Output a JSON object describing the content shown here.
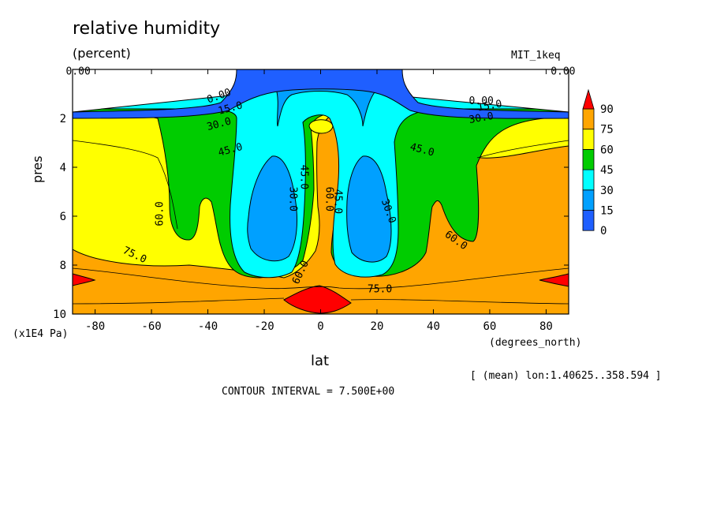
{
  "chart_data": {
    "type": "heatmap",
    "title": "relative humidity",
    "subtitle": "(percent)",
    "run_label": "MIT_1keq",
    "xlabel": "lat",
    "x_units": "(degrees_north)",
    "ylabel": "pres",
    "y_units": "(x1E4 Pa)",
    "averaging_note": "[ (mean) lon:1.40625..358.594 ]",
    "contour_interval": "CONTOUR INTERVAL = 7.500E+00",
    "xlim": [
      -88,
      88
    ],
    "ylim": [
      10,
      0
    ],
    "x_ticks": [
      -80,
      -60,
      -40,
      -20,
      0,
      20,
      40,
      60,
      80
    ],
    "x_tick_labels": [
      "-80",
      "-60",
      "-40",
      "-20",
      "0",
      "20",
      "40",
      "60",
      "80"
    ],
    "y_ticks": [
      2,
      4,
      6,
      8,
      10
    ],
    "y_tick_labels": [
      "2",
      "4",
      "6",
      "8",
      "10"
    ],
    "colorbar": {
      "levels": [
        "0",
        "15",
        "30",
        "45",
        "60",
        "75",
        "90"
      ],
      "colors": [
        "#1f5fff",
        "#00a0ff",
        "#00ffff",
        "#00cc00",
        "#ffff00",
        "#ffa500",
        "#ff0000"
      ]
    },
    "contour_labels": [
      {
        "text": "0.00",
        "x": -86,
        "y": 0.1
      },
      {
        "text": "0.00",
        "x": 86,
        "y": 0.1
      },
      {
        "text": "0.00",
        "x": -36,
        "y": 1.1,
        "angle": -20
      },
      {
        "text": "15.0",
        "x": -32,
        "y": 1.6,
        "angle": -15
      },
      {
        "text": "30.0",
        "x": -36,
        "y": 2.25,
        "angle": -15
      },
      {
        "text": "45.0",
        "x": -32,
        "y": 3.3,
        "angle": -15
      },
      {
        "text": "0.00",
        "x": 57,
        "y": 1.3
      },
      {
        "text": "15.0",
        "x": 60,
        "y": 1.5,
        "angle": -10
      },
      {
        "text": "30.0",
        "x": 57,
        "y": 2.0,
        "angle": -10
      },
      {
        "text": "45.0",
        "x": 36,
        "y": 3.3,
        "angle": 15
      },
      {
        "text": "60.0",
        "x": -57,
        "y": 5.9,
        "angle": -90
      },
      {
        "text": "30.0",
        "x": -10,
        "y": 5.3,
        "angle": 90
      },
      {
        "text": "45.0",
        "x": -6,
        "y": 4.4,
        "angle": 90
      },
      {
        "text": "60.0",
        "x": 3,
        "y": 5.3,
        "angle": 90
      },
      {
        "text": "45.0",
        "x": 6,
        "y": 5.4,
        "angle": 90
      },
      {
        "text": "30.0",
        "x": 24,
        "y": 5.8,
        "angle": 70
      },
      {
        "text": "60.0",
        "x": 48,
        "y": 7.0,
        "angle": 35
      },
      {
        "text": "75.0",
        "x": -66,
        "y": 7.6,
        "angle": 25
      },
      {
        "text": "60.0",
        "x": -7,
        "y": 8.3,
        "angle": -65
      },
      {
        "text": "75.0",
        "x": 21,
        "y": 9.0
      }
    ]
  }
}
